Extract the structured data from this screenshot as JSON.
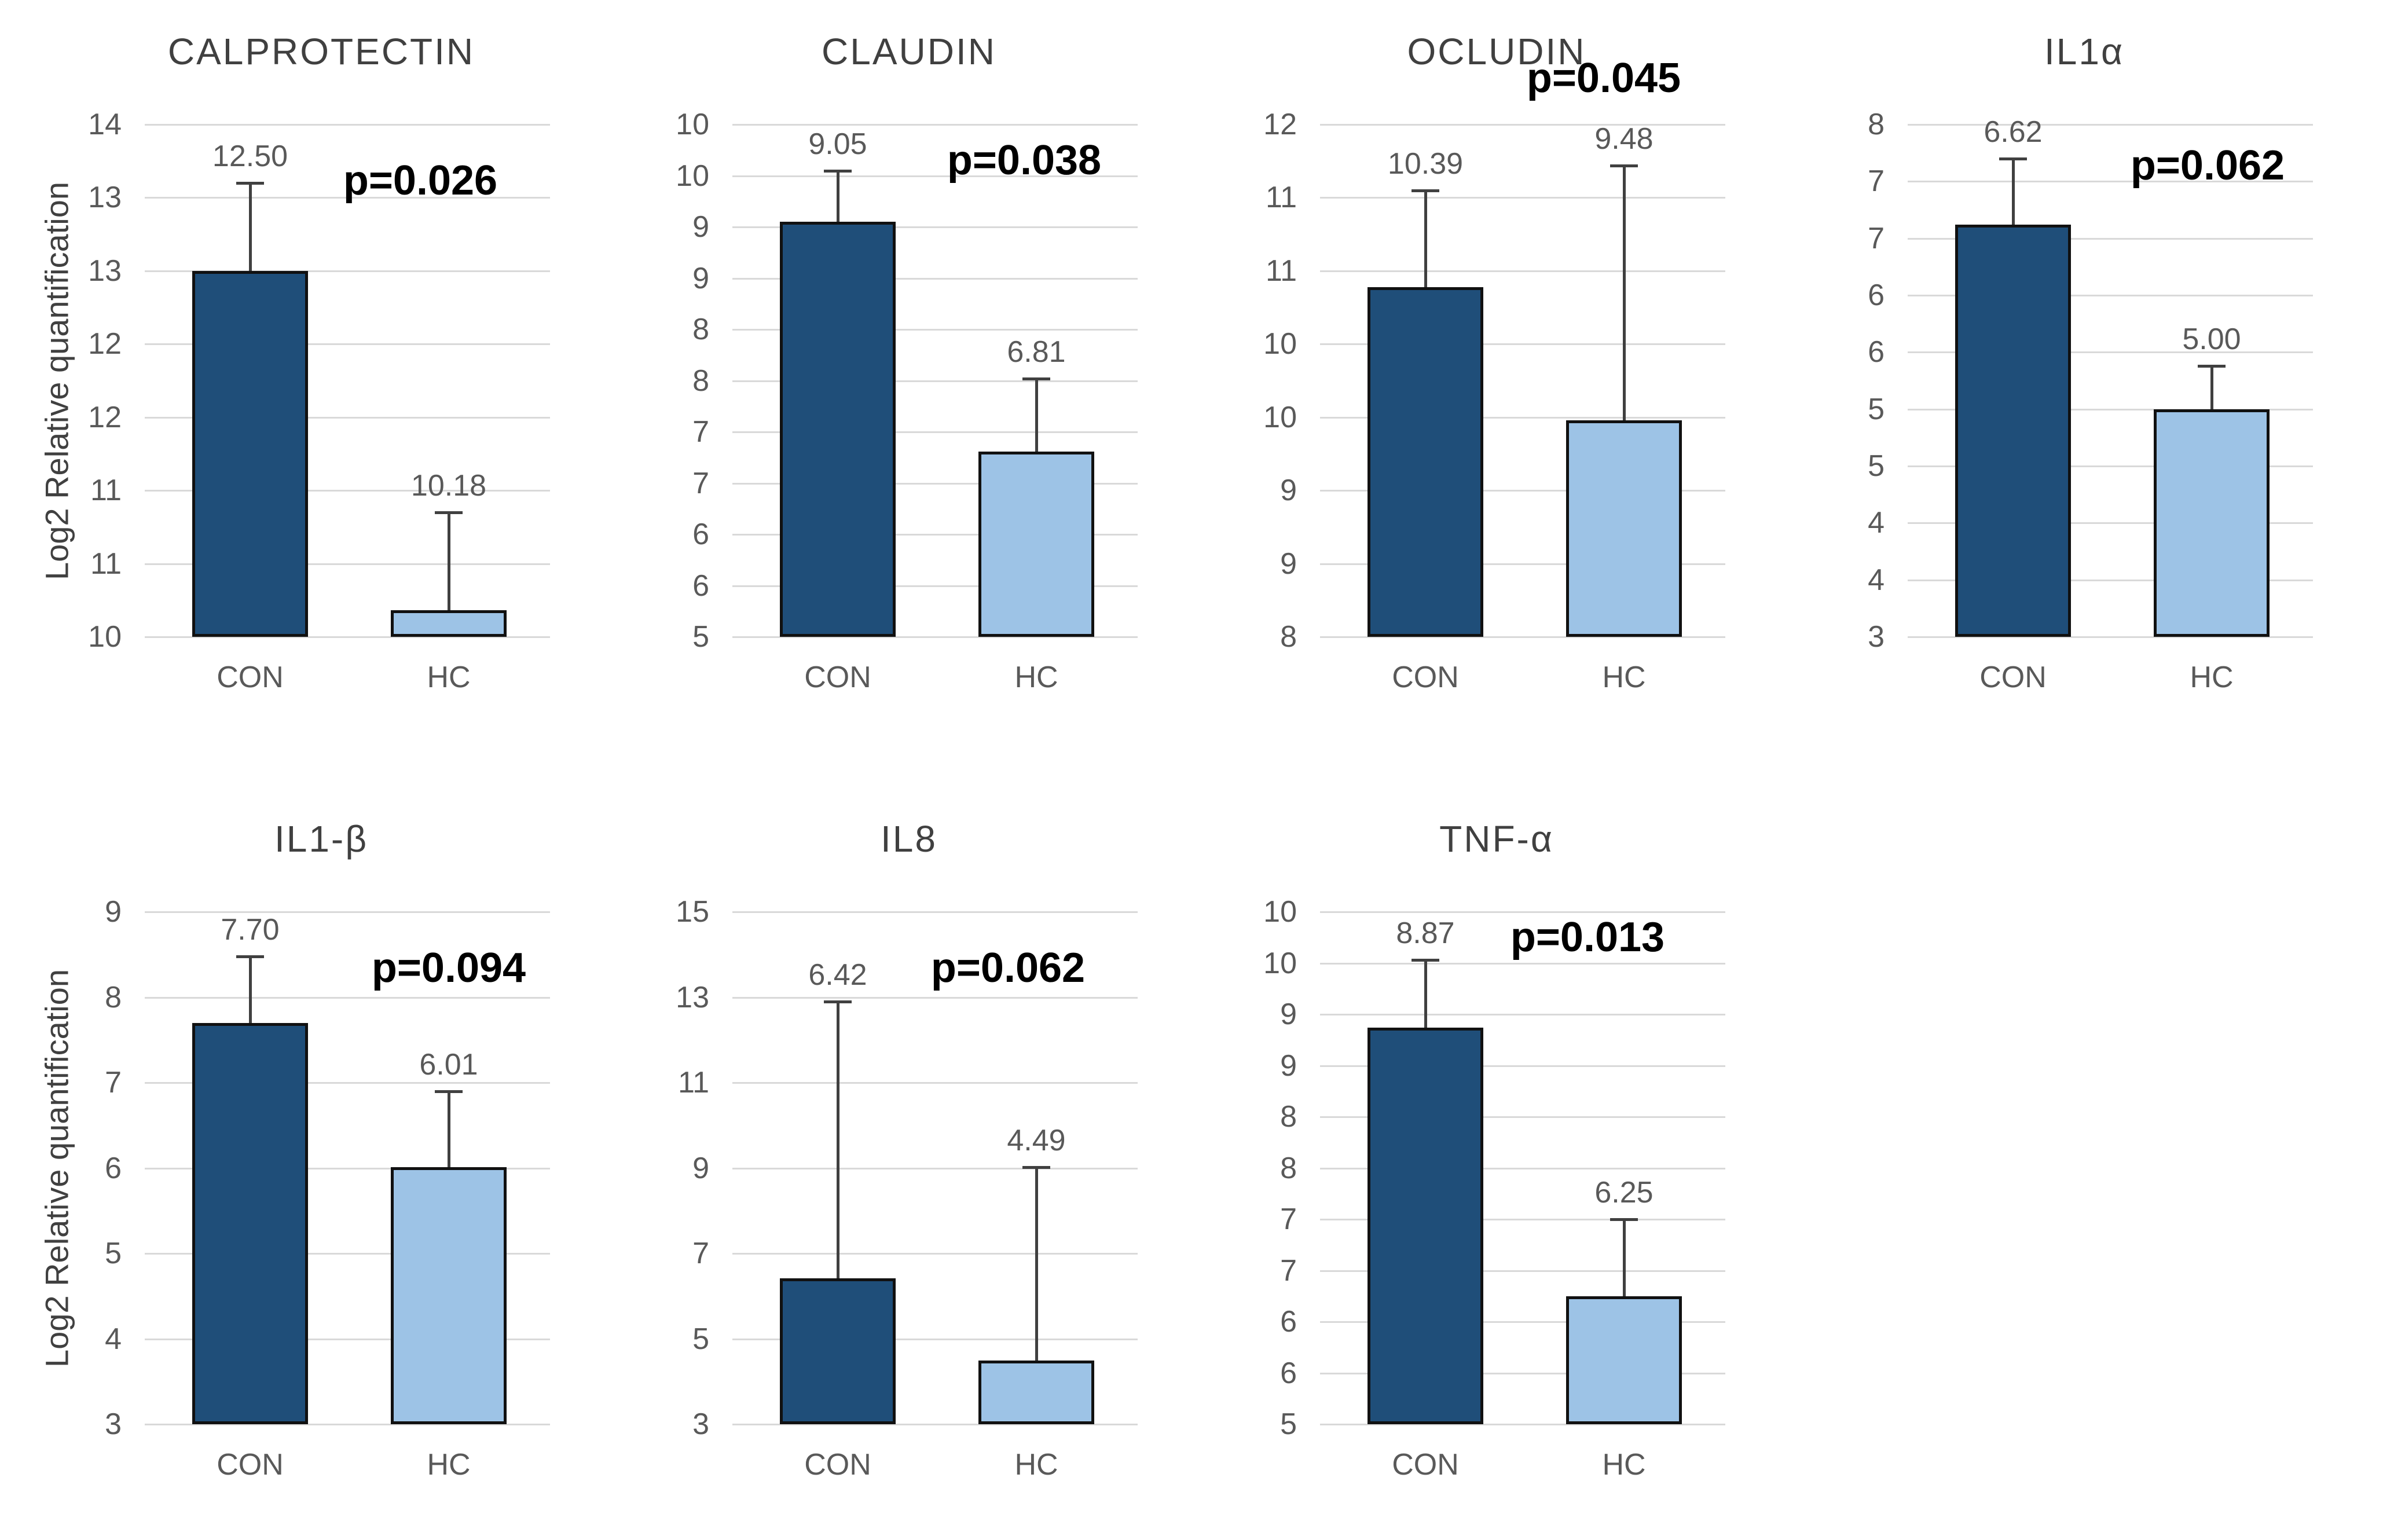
{
  "figure": {
    "background": "#ffffff",
    "y_axis_title": "Log2 Relative quantification",
    "category_labels": [
      "CON",
      "HC"
    ],
    "colors": {
      "con_bar": "#1f4e79",
      "hc_bar": "#9dc3e6",
      "bar_border": "#111111",
      "gridline": "#d9d9d9",
      "error_bar": "#404040",
      "tick_text": "#595959",
      "value_text": "#595959",
      "title_text": "#404040",
      "category_text": "#595959",
      "p_text": "#000000"
    }
  },
  "chart_data": [
    {
      "type": "bar",
      "title": "CALPROTECTIN",
      "p_label": "p=0.026",
      "ylabel_visible": true,
      "ylabel": "Log2 Relative quantification",
      "axis": {
        "min": 10.0,
        "max": 13.5,
        "gridlines": true,
        "tick_labels_top_to_bottom": [
          "14",
          "13",
          "13",
          "12",
          "12",
          "11",
          "11",
          "10"
        ]
      },
      "categories": [
        "CON",
        "HC"
      ],
      "bars": [
        {
          "category": "CON",
          "value": 12.5,
          "label": "12.50",
          "error_top": 13.1
        },
        {
          "category": "HC",
          "value": 10.18,
          "label": "10.18",
          "error_top": 10.85
        }
      ],
      "p_pos": {
        "x_frac": 0.68,
        "y_frac": 0.11
      }
    },
    {
      "type": "bar",
      "title": "CLAUDIN",
      "p_label": "p=0.038",
      "ylabel_visible": false,
      "ylabel": "",
      "axis": {
        "min": 5.0,
        "max": 10.0,
        "gridlines": true,
        "tick_labels_top_to_bottom": [
          "10",
          "10",
          "9",
          "9",
          "8",
          "8",
          "7",
          "7",
          "6",
          "6",
          "5"
        ]
      },
      "categories": [
        "CON",
        "HC"
      ],
      "bars": [
        {
          "category": "CON",
          "value": 9.05,
          "label": "9.05",
          "error_top": 9.55
        },
        {
          "category": "HC",
          "value": 6.81,
          "label": "6.81",
          "error_top": 7.52
        }
      ],
      "p_pos": {
        "x_frac": 0.72,
        "y_frac": 0.07
      }
    },
    {
      "type": "bar",
      "title": "OCLUDIN",
      "p_label": "p=0.045",
      "ylabel_visible": false,
      "ylabel": "",
      "axis": {
        "min": 8.0,
        "max": 11.5,
        "gridlines": true,
        "tick_labels_top_to_bottom": [
          "12",
          "11",
          "11",
          "10",
          "10",
          "9",
          "9",
          "8"
        ]
      },
      "categories": [
        "CON",
        "HC"
      ],
      "bars": [
        {
          "category": "CON",
          "value": 10.39,
          "label": "10.39",
          "error_top": 11.05
        },
        {
          "category": "HC",
          "value": 9.48,
          "label": "9.48",
          "error_top": 11.22
        }
      ],
      "p_pos": {
        "x_frac": 0.7,
        "y_frac": -0.09
      }
    },
    {
      "type": "bar",
      "title": "IL1α",
      "p_label": "p=0.062",
      "ylabel_visible": false,
      "ylabel": "",
      "axis": {
        "min": 3.0,
        "max": 7.5,
        "gridlines": true,
        "tick_labels_top_to_bottom": [
          "8",
          "7",
          "7",
          "6",
          "6",
          "5",
          "5",
          "4",
          "4",
          "3"
        ]
      },
      "categories": [
        "CON",
        "HC"
      ],
      "bars": [
        {
          "category": "CON",
          "value": 6.62,
          "label": "6.62",
          "error_top": 7.2
        },
        {
          "category": "HC",
          "value": 5.0,
          "label": "5.00",
          "error_top": 5.38
        }
      ],
      "p_pos": {
        "x_frac": 0.74,
        "y_frac": 0.08
      }
    },
    {
      "type": "bar",
      "title": "IL1-β",
      "p_label": "p=0.094",
      "ylabel_visible": true,
      "ylabel": "Log2 Relative quantification",
      "axis": {
        "min": 3.0,
        "max": 9.0,
        "gridlines": true,
        "tick_labels_top_to_bottom": [
          "9",
          "8",
          "7",
          "6",
          "5",
          "4",
          "3"
        ]
      },
      "categories": [
        "CON",
        "HC"
      ],
      "bars": [
        {
          "category": "CON",
          "value": 7.7,
          "label": "7.70",
          "error_top": 8.48
        },
        {
          "category": "HC",
          "value": 6.01,
          "label": "6.01",
          "error_top": 6.9
        }
      ],
      "p_pos": {
        "x_frac": 0.75,
        "y_frac": 0.11
      }
    },
    {
      "type": "bar",
      "title": "IL8",
      "p_label": "p=0.062",
      "ylabel_visible": false,
      "ylabel": "",
      "axis": {
        "min": 3.0,
        "max": 15.0,
        "gridlines": true,
        "tick_labels_top_to_bottom": [
          "15",
          "13",
          "11",
          "9",
          "7",
          "5",
          "3"
        ]
      },
      "categories": [
        "CON",
        "HC"
      ],
      "bars": [
        {
          "category": "CON",
          "value": 6.42,
          "label": "6.42",
          "error_top": 12.9
        },
        {
          "category": "HC",
          "value": 4.49,
          "label": "4.49",
          "error_top": 9.02
        }
      ],
      "p_pos": {
        "x_frac": 0.68,
        "y_frac": 0.11
      }
    },
    {
      "type": "bar",
      "title": "TNF-α",
      "p_label": "p=0.013",
      "ylabel_visible": false,
      "ylabel": "",
      "axis": {
        "min": 5.0,
        "max": 10.0,
        "gridlines": true,
        "tick_labels_top_to_bottom": [
          "10",
          "10",
          "9",
          "9",
          "8",
          "8",
          "7",
          "7",
          "6",
          "6",
          "5"
        ]
      },
      "categories": [
        "CON",
        "HC"
      ],
      "bars": [
        {
          "category": "CON",
          "value": 8.87,
          "label": "8.87",
          "error_top": 9.53
        },
        {
          "category": "HC",
          "value": 6.25,
          "label": "6.25",
          "error_top": 7.0
        }
      ],
      "p_pos": {
        "x_frac": 0.66,
        "y_frac": 0.05
      }
    }
  ]
}
